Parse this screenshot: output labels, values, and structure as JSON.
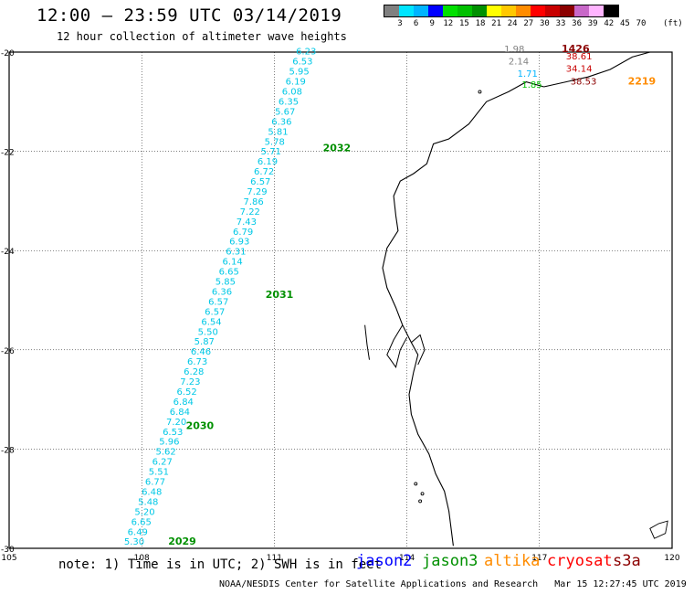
{
  "header": {
    "title": "12:00 – 23:59 UTC 03/14/2019",
    "subtitle": "12 hour collection of altimeter wave heights"
  },
  "color_scale": {
    "labels": [
      "3",
      "6",
      "9",
      "12",
      "15",
      "18",
      "21",
      "24",
      "27",
      "30",
      "33",
      "36",
      "39",
      "42",
      "45",
      "70"
    ],
    "unit": "(ft)",
    "colors": [
      "#808080",
      "#00e5ff",
      "#00b4ff",
      "#0000ff",
      "#00e000",
      "#00c000",
      "#009000",
      "#ffff00",
      "#ffc800",
      "#ff8c00",
      "#ff0000",
      "#c80000",
      "#8b0000",
      "#c868c8",
      "#ffb4ff",
      "#000000"
    ]
  },
  "footer": {
    "note": "note: 1) Time is in UTC; 2) SWH is in feet",
    "credit": "NOAA/NESDIS Center for Satellite Applications and Research   Mar 15 12:27:45 UTC 2019",
    "legend": [
      {
        "name": "jason2",
        "color": "#0000ff"
      },
      {
        "name": "jason3",
        "color": "#009000"
      },
      {
        "name": "altika",
        "color": "#ff8c00"
      },
      {
        "name": "cryosat",
        "color": "#ff0000"
      },
      {
        "name": "s3a",
        "color": "#8b0000"
      }
    ]
  },
  "chart_data": {
    "type": "scatter",
    "x_ticks": [
      "105",
      "108",
      "111",
      "114",
      "117",
      "120"
    ],
    "y_ticks": [
      "-20",
      "-22",
      "-24",
      "-26",
      "-28",
      "-30"
    ],
    "xlim": [
      105,
      120
    ],
    "ylim": [
      -30,
      -20
    ],
    "track_main": {
      "color": "#00c8e6",
      "values": [
        "5.30",
        "6.49",
        "6.65",
        "5.20",
        "5.48",
        "6.48",
        "6.77",
        "5.51",
        "6.27",
        "5.62",
        "5.96",
        "6.53",
        "7.20",
        "6.84",
        "6.84",
        "6.52",
        "7.23",
        "6.28",
        "6.73",
        "6.46",
        "5.87",
        "5.50",
        "6.54",
        "6.57",
        "6.57",
        "6.36",
        "5.85",
        "6.65",
        "6.14",
        "6.31",
        "6.93",
        "6.79",
        "7.43",
        "7.22",
        "7.86",
        "7.29",
        "6.57",
        "6.72",
        "6.19",
        "5.71",
        "5.78",
        "5.81",
        "6.36",
        "5.67",
        "6.35",
        "6.08",
        "6.19",
        "5.95",
        "6.53",
        "6.23"
      ],
      "start": [
        107.83,
        -29.93
      ],
      "end": [
        111.72,
        -20.05
      ]
    },
    "time_labels": [
      {
        "text": "2029",
        "lon": 108.6,
        "lat": -29.93
      },
      {
        "text": "2030",
        "lon": 109.0,
        "lat": -27.6
      },
      {
        "text": "2031",
        "lon": 110.8,
        "lat": -24.95
      },
      {
        "text": "2032",
        "lon": 112.1,
        "lat": -22.0
      }
    ],
    "track_ne": [
      {
        "text": "1.98",
        "lon": 116.2,
        "lat": -20.0,
        "color": "#808080"
      },
      {
        "text": "1426",
        "lon": 117.5,
        "lat": -20.0,
        "color": "#8b0000",
        "bold": true
      },
      {
        "text": "38.61",
        "lon": 117.6,
        "lat": -20.15,
        "color": "#c80000"
      },
      {
        "text": "2.14",
        "lon": 116.3,
        "lat": -20.25,
        "color": "#808080"
      },
      {
        "text": "34.14",
        "lon": 117.6,
        "lat": -20.4,
        "color": "#c80000"
      },
      {
        "text": "1.71",
        "lon": 116.5,
        "lat": -20.5,
        "color": "#00b4ff"
      },
      {
        "text": "38.53",
        "lon": 117.7,
        "lat": -20.65,
        "color": "#8b0000"
      },
      {
        "text": "2219",
        "lon": 119.0,
        "lat": -20.65,
        "color": "#ff8c00",
        "bold": true
      },
      {
        "text": "1.85",
        "lon": 116.6,
        "lat": -20.72,
        "color": "#00c000"
      }
    ]
  }
}
